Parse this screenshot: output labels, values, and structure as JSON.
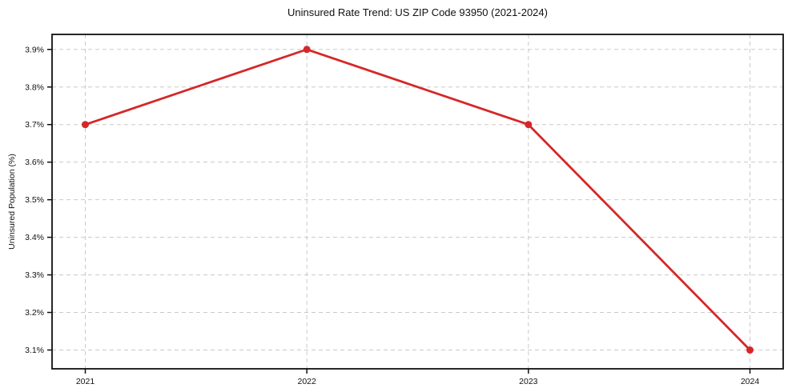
{
  "chart_data": {
    "type": "line",
    "title": "Uninsured Rate Trend: US ZIP Code 93950 (2021-2024)",
    "xlabel": "",
    "ylabel": "Uninsured Population (%)",
    "x": [
      2021,
      2022,
      2023,
      2024
    ],
    "x_tick_labels": [
      "2021",
      "2022",
      "2023",
      "2024"
    ],
    "y_ticks": [
      3.1,
      3.2,
      3.3,
      3.4,
      3.5,
      3.6,
      3.7,
      3.8,
      3.9
    ],
    "y_tick_suffix": "%",
    "series": [
      {
        "name": "uninsured-rate",
        "values": [
          3.7,
          3.9,
          3.7,
          3.1
        ],
        "color": "#d62728",
        "marker": "circle"
      }
    ],
    "xlim": [
      2020.85,
      2024.15
    ],
    "ylim": [
      3.05,
      3.94
    ],
    "grid": true,
    "grid_style": "dashed",
    "legend": "none",
    "colors": {
      "line": "#d62728",
      "grid": "#c9c9c9",
      "spine": "#0f0f0f",
      "text": "#111111",
      "background": "#ffffff"
    }
  }
}
